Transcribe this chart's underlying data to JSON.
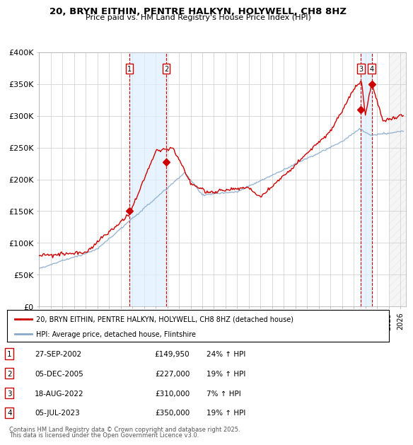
{
  "title": "20, BRYN EITHIN, PENTRE HALKYN, HOLYWELL, CH8 8HZ",
  "subtitle": "Price paid vs. HM Land Registry's House Price Index (HPI)",
  "ylim": [
    0,
    400000
  ],
  "yticks": [
    0,
    50000,
    100000,
    150000,
    200000,
    250000,
    300000,
    350000,
    400000
  ],
  "ytick_labels": [
    "£0",
    "£50K",
    "£100K",
    "£150K",
    "£200K",
    "£250K",
    "£300K",
    "£350K",
    "£400K"
  ],
  "xlim_start": 1995.0,
  "xlim_end": 2026.5,
  "sale_prices": [
    149950,
    227000,
    310000,
    350000
  ],
  "sale_labels": [
    "1",
    "2",
    "3",
    "4"
  ],
  "sale_pct": [
    "24% ↑ HPI",
    "19% ↑ HPI",
    "7% ↑ HPI",
    "19% ↑ HPI"
  ],
  "sale_date_strs": [
    "27-SEP-2002",
    "05-DEC-2005",
    "18-AUG-2022",
    "05-JUL-2023"
  ],
  "sale_price_strs": [
    "£149,950",
    "£227,000",
    "£310,000",
    "£350,000"
  ],
  "legend_line1": "20, BRYN EITHIN, PENTRE HALKYN, HOLYWELL, CH8 8HZ (detached house)",
  "legend_line2": "HPI: Average price, detached house, Flintshire",
  "footer1": "Contains HM Land Registry data © Crown copyright and database right 2025.",
  "footer2": "This data is licensed under the Open Government Licence v3.0.",
  "line_color_red": "#cc0000",
  "line_color_blue": "#88aacc",
  "shade_color": "#ddeeff",
  "vline_color": "#cc0000",
  "background_color": "#ffffff",
  "grid_color": "#cccccc"
}
